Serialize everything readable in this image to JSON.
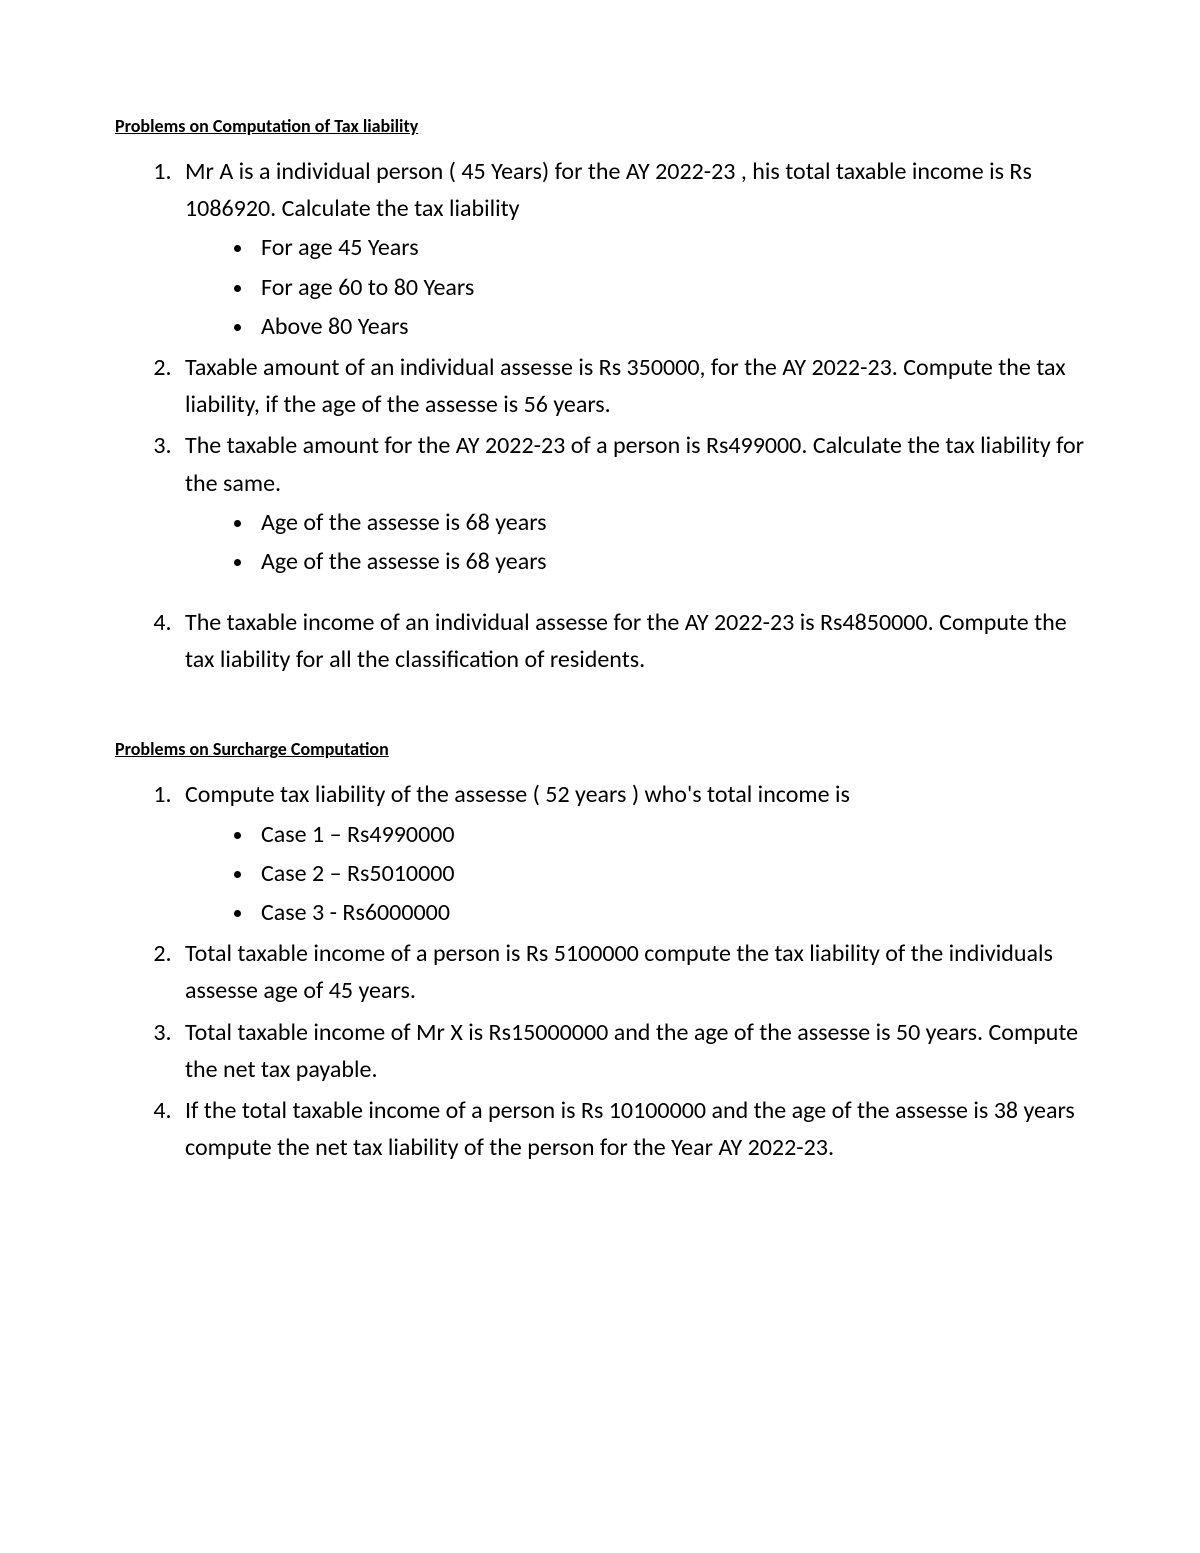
{
  "section1": {
    "heading": "Problems on Computation of Tax liability",
    "items": [
      {
        "text": "Mr A is a individual person ( 45 Years) for the AY 2022-23 , his total taxable income is Rs 1086920. Calculate the tax liability",
        "bullets": [
          "For age 45 Years",
          "For age 60 to 80 Years",
          "Above 80 Years"
        ]
      },
      {
        "text": "Taxable amount of an individual assesse is Rs 350000, for the AY 2022-23. Compute the tax liability, if the age of the assesse is 56 years."
      },
      {
        "text": "The taxable amount for the AY 2022-23 of a person is Rs499000. Calculate the tax liability for the same.",
        "bullets": [
          "Age of the assesse is 68 years",
          "Age of the assesse is 68 years"
        ]
      },
      {
        "text": "The taxable income of an individual assesse for the AY 2022-23 is Rs4850000. Compute the tax liability for all the classification of residents."
      }
    ]
  },
  "section2": {
    "heading": "Problems on Surcharge Computation",
    "items": [
      {
        "text": "Compute tax liability of the assesse ( 52 years ) who's total income is",
        "bullets": [
          "Case 1 – Rs4990000",
          "Case 2 – Rs5010000",
          "Case 3  - Rs6000000"
        ]
      },
      {
        "text": "Total taxable income of a person is Rs 5100000 compute the tax liability of the individuals assesse age of 45 years."
      },
      {
        "text": "Total taxable income of   Mr X is Rs15000000 and the age of the assesse is 50 years. Compute the net tax payable."
      },
      {
        "text": "If the total taxable income of a person is Rs 10100000 and the age of the assesse is 38 years compute the net tax liability of the person for the Year AY 2022-23."
      }
    ]
  },
  "styles": {
    "background_color": "#ffffff",
    "text_color": "#000000",
    "heading_fontsize": 18,
    "body_fontsize": 24,
    "font_family": "Calibri"
  }
}
